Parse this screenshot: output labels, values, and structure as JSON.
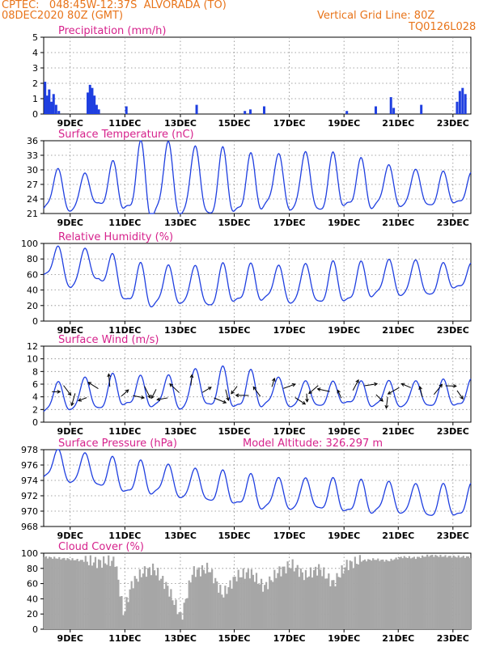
{
  "header": {
    "line1": "CPTEC:   048:45W-12:37S  ALVORADA (TO)",
    "line2": "08DEC2020 80Z (GMT)",
    "grid_note": "Vertical Grid Line: 80Z",
    "code": "TQ0126L028"
  },
  "colors": {
    "header": "#e8741a",
    "title": "#d6228c",
    "line": "#1f3fe0",
    "cloud": "#a6a6a6"
  },
  "x_ticks": [
    "9DEC",
    "11DEC",
    "13DEC",
    "15DEC",
    "17DEC",
    "19DEC",
    "21DEC",
    "23DEC"
  ],
  "chart_data": [
    {
      "type": "bar",
      "title": "Precipitation (mm/h)",
      "ylim": [
        0,
        5
      ],
      "yticks": [
        0,
        1,
        2,
        3,
        4,
        5
      ],
      "x_range_days": [
        0,
        15.5
      ],
      "values": [
        [
          0.05,
          2.1
        ],
        [
          0.12,
          1.2
        ],
        [
          0.2,
          1.6
        ],
        [
          0.28,
          0.8
        ],
        [
          0.36,
          1.3
        ],
        [
          0.45,
          0.6
        ],
        [
          0.55,
          0.2
        ],
        [
          1.6,
          1.4
        ],
        [
          1.68,
          1.9
        ],
        [
          1.76,
          1.7
        ],
        [
          1.84,
          1.2
        ],
        [
          1.92,
          0.6
        ],
        [
          2.0,
          0.3
        ],
        [
          3.0,
          0.5
        ],
        [
          5.55,
          0.6
        ],
        [
          7.3,
          0.2
        ],
        [
          7.5,
          0.3
        ],
        [
          8.0,
          0.5
        ],
        [
          11.0,
          0.2
        ],
        [
          12.05,
          0.5
        ],
        [
          12.6,
          1.1
        ],
        [
          12.7,
          0.4
        ],
        [
          13.7,
          0.6
        ],
        [
          15.0,
          0.8
        ],
        [
          15.1,
          1.5
        ],
        [
          15.2,
          1.7
        ],
        [
          15.3,
          1.3
        ]
      ]
    },
    {
      "type": "line",
      "title": "Surface Temperature (nC)",
      "ylim": [
        21,
        36
      ],
      "yticks": [
        21,
        24,
        27,
        30,
        33,
        36
      ],
      "x_range_days": [
        0,
        15.5
      ],
      "base": 25.5,
      "amplitude": [
        4.5,
        4,
        3,
        6,
        8,
        7,
        7,
        6,
        5,
        6,
        6,
        5,
        4.5,
        4,
        3.5,
        3
      ],
      "offset": [
        0,
        -0.5,
        0,
        1,
        1.5,
        1.5,
        1,
        0.5,
        1,
        1.5,
        1,
        1,
        0.5,
        0.5,
        0,
        0
      ]
    },
    {
      "type": "line",
      "title": "Relative Humidity (%)",
      "ylim": [
        0,
        100
      ],
      "yticks": [
        0,
        20,
        40,
        60,
        80,
        100
      ],
      "x_range_days": [
        0,
        15.5
      ],
      "base": 55,
      "amplitude": [
        20,
        25,
        20,
        25,
        25,
        25,
        25,
        25,
        20,
        25,
        25,
        25,
        20,
        25,
        20,
        15
      ],
      "offset": [
        20,
        10,
        15,
        -10,
        -15,
        -10,
        -15,
        -10,
        -10,
        -10,
        -10,
        -10,
        -5,
        0,
        -5,
        0
      ]
    },
    {
      "type": "line",
      "title": "Surface Wind (m/s)",
      "ylim": [
        0,
        12
      ],
      "yticks": [
        0,
        2,
        4,
        6,
        8,
        10,
        12
      ],
      "x_range_days": [
        0,
        15.5
      ],
      "base": 4.2,
      "amplitude": [
        2,
        2.5,
        2.5,
        2.5,
        2,
        3,
        3,
        3,
        2.5,
        2,
        2,
        1.5,
        2,
        2,
        2,
        2
      ],
      "offset": [
        -1,
        0,
        0,
        0.5,
        0,
        0.5,
        1,
        0.5,
        0.5,
        0,
        0,
        0,
        0,
        0,
        0,
        0
      ]
    },
    {
      "type": "line",
      "title": "Surface Pressure (hPa)",
      "note": "Model Altitude: 326.297 m",
      "ylim": [
        968,
        978
      ],
      "yticks": [
        968,
        970,
        972,
        974,
        976,
        978
      ],
      "x_range_days": [
        0,
        15.5
      ],
      "base": 973,
      "amplitude": [
        2,
        2,
        2,
        2,
        2,
        2,
        2,
        2,
        2,
        2,
        2,
        2,
        2,
        2,
        2,
        2
      ],
      "offset": [
        3,
        2.5,
        2,
        1,
        1,
        0.5,
        0,
        -0.5,
        -1,
        -1,
        -1,
        -1.5,
        -1.5,
        -1.5,
        -2,
        -2
      ]
    },
    {
      "type": "area",
      "title": "Cloud Cover (%)",
      "ylim": [
        0,
        100
      ],
      "yticks": [
        0,
        20,
        40,
        60,
        80,
        100
      ],
      "x_range_days": [
        0,
        15.5
      ],
      "values": [
        [
          0,
          95
        ],
        [
          1,
          92
        ],
        [
          2,
          88
        ],
        [
          2.6,
          90
        ],
        [
          2.9,
          20
        ],
        [
          3.2,
          60
        ],
        [
          3.6,
          75
        ],
        [
          4,
          80
        ],
        [
          4.5,
          55
        ],
        [
          5,
          15
        ],
        [
          5.4,
          75
        ],
        [
          6,
          80
        ],
        [
          6.5,
          45
        ],
        [
          7,
          70
        ],
        [
          7.5,
          75
        ],
        [
          8,
          55
        ],
        [
          8.5,
          75
        ],
        [
          9,
          85
        ],
        [
          9.5,
          70
        ],
        [
          10,
          80
        ],
        [
          10.5,
          60
        ],
        [
          11,
          85
        ],
        [
          11.5,
          90
        ],
        [
          12,
          92
        ],
        [
          12.5,
          90
        ],
        [
          13,
          95
        ],
        [
          13.5,
          94
        ],
        [
          14,
          97
        ],
        [
          14.5,
          96
        ],
        [
          15.5,
          95
        ]
      ]
    }
  ]
}
